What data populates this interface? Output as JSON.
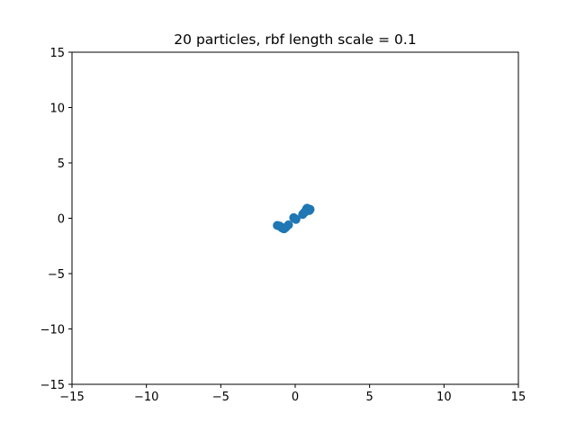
{
  "chart_data": {
    "type": "scatter",
    "title": "20 particles, rbf length scale = 0.1",
    "xlabel": "",
    "ylabel": "",
    "xlim": [
      -15,
      15
    ],
    "ylim": [
      -15,
      15
    ],
    "xticks": [
      -15,
      -10,
      -5,
      0,
      5,
      10,
      15
    ],
    "yticks": [
      -15,
      -10,
      -5,
      0,
      5,
      10,
      15
    ],
    "xtick_labels": [
      "−15",
      "−10",
      "−5",
      "0",
      "5",
      "10",
      "15"
    ],
    "ytick_labels": [
      "−15",
      "−10",
      "−5",
      "0",
      "5",
      "10",
      "15"
    ],
    "grid": false,
    "legend": "none",
    "marker_color": "#1f77b4",
    "points": [
      {
        "x": -1.2,
        "y": -0.65
      },
      {
        "x": -1.05,
        "y": -0.7
      },
      {
        "x": -0.95,
        "y": -0.8
      },
      {
        "x": -0.85,
        "y": -0.9
      },
      {
        "x": -0.75,
        "y": -0.95
      },
      {
        "x": -0.65,
        "y": -0.85
      },
      {
        "x": -0.45,
        "y": -0.6
      },
      {
        "x": -0.1,
        "y": 0.05
      },
      {
        "x": 0.0,
        "y": -0.05
      },
      {
        "x": 0.05,
        "y": -0.1
      },
      {
        "x": 0.5,
        "y": 0.35
      },
      {
        "x": 0.6,
        "y": 0.5
      },
      {
        "x": 0.7,
        "y": 0.65
      },
      {
        "x": 0.75,
        "y": 0.8
      },
      {
        "x": 0.8,
        "y": 0.9
      },
      {
        "x": 0.85,
        "y": 0.85
      },
      {
        "x": 0.9,
        "y": 0.75
      },
      {
        "x": 0.95,
        "y": 0.7
      },
      {
        "x": 1.0,
        "y": 0.8
      },
      {
        "x": 0.65,
        "y": 0.55
      }
    ]
  }
}
